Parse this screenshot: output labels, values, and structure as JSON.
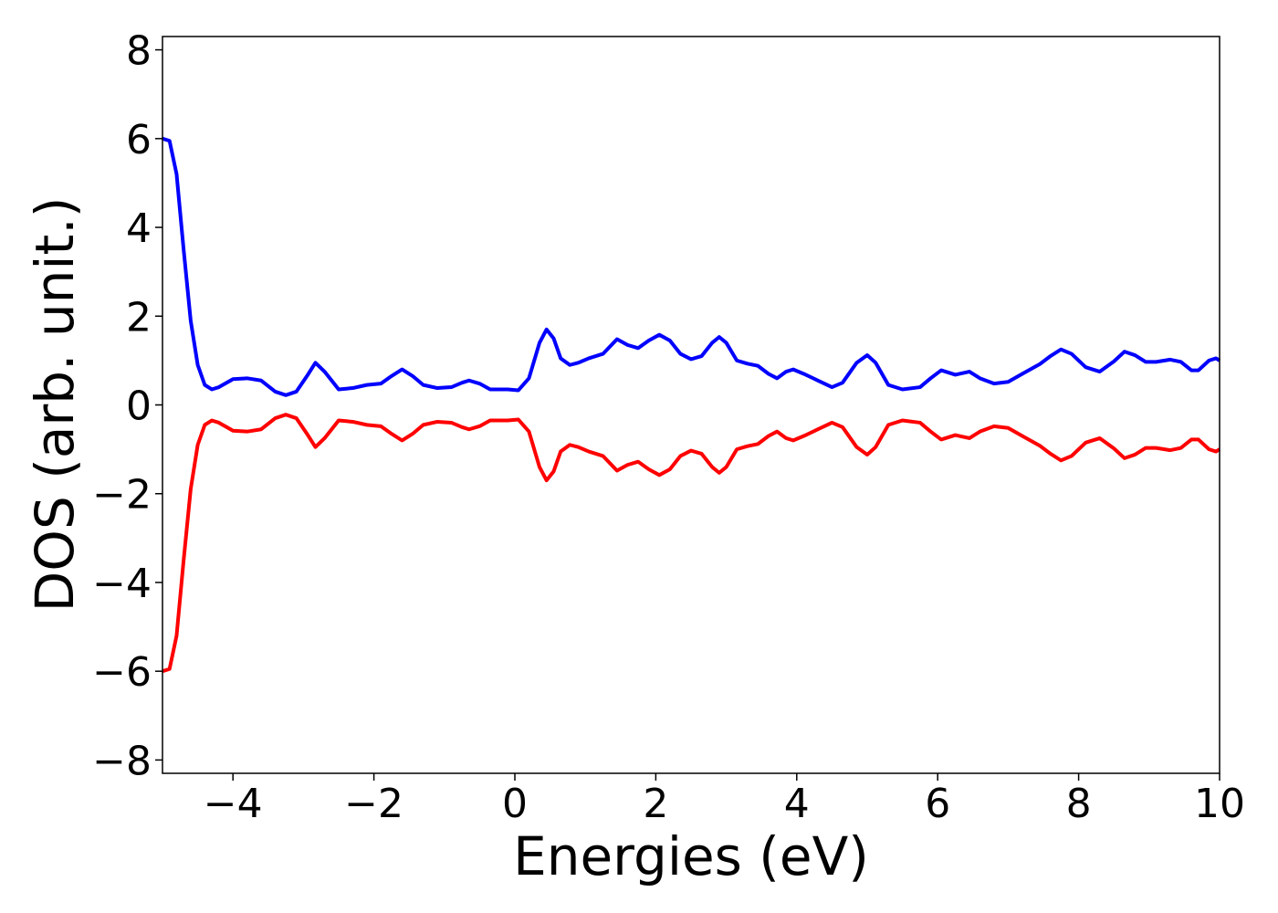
{
  "chart_data": {
    "type": "line",
    "xlabel": "Energies (eV)",
    "ylabel": "DOS (arb. unit.)",
    "x": [
      -5,
      -4.9,
      -4.8,
      -4.7,
      -4.6,
      -4.5,
      -4.4,
      -4.3,
      -4.2,
      -4.0,
      -3.8,
      -3.6,
      -3.4,
      -3.25,
      -3.1,
      -2.95,
      -2.83,
      -2.7,
      -2.5,
      -2.3,
      -2.1,
      -1.9,
      -1.75,
      -1.6,
      -1.45,
      -1.3,
      -1.1,
      -0.9,
      -0.75,
      -0.65,
      -0.5,
      -0.35,
      -0.1,
      0.05,
      0.2,
      0.35,
      0.45,
      0.55,
      0.65,
      0.78,
      0.9,
      1.05,
      1.25,
      1.45,
      1.6,
      1.75,
      1.9,
      2.05,
      2.2,
      2.35,
      2.5,
      2.65,
      2.8,
      2.9,
      3.0,
      3.15,
      3.3,
      3.45,
      3.6,
      3.72,
      3.85,
      3.95,
      4.1,
      4.3,
      4.5,
      4.65,
      4.85,
      5.0,
      5.12,
      5.3,
      5.5,
      5.75,
      5.9,
      6.05,
      6.25,
      6.45,
      6.6,
      6.8,
      7.0,
      7.2,
      7.45,
      7.6,
      7.75,
      7.9,
      8.1,
      8.3,
      8.5,
      8.65,
      8.8,
      8.95,
      9.1,
      9.3,
      9.45,
      9.6,
      9.7,
      9.85,
      9.95,
      10
    ],
    "series": [
      {
        "color": "#0000ff",
        "values": [
          6.0,
          5.95,
          5.2,
          3.5,
          1.9,
          0.9,
          0.45,
          0.35,
          0.4,
          0.58,
          0.6,
          0.55,
          0.3,
          0.22,
          0.3,
          0.65,
          0.95,
          0.75,
          0.35,
          0.38,
          0.45,
          0.48,
          0.65,
          0.8,
          0.65,
          0.45,
          0.38,
          0.4,
          0.5,
          0.55,
          0.48,
          0.35,
          0.35,
          0.33,
          0.6,
          1.4,
          1.7,
          1.5,
          1.05,
          0.9,
          0.95,
          1.05,
          1.15,
          1.48,
          1.35,
          1.28,
          1.45,
          1.58,
          1.45,
          1.15,
          1.03,
          1.1,
          1.4,
          1.53,
          1.4,
          1.0,
          0.93,
          0.88,
          0.7,
          0.6,
          0.75,
          0.8,
          0.7,
          0.55,
          0.4,
          0.5,
          0.95,
          1.12,
          0.95,
          0.45,
          0.35,
          0.4,
          0.6,
          0.78,
          0.68,
          0.75,
          0.6,
          0.48,
          0.52,
          0.7,
          0.92,
          1.1,
          1.25,
          1.15,
          0.85,
          0.75,
          0.98,
          1.2,
          1.12,
          0.97,
          0.97,
          1.02,
          0.97,
          0.78,
          0.78,
          1.0,
          1.05,
          1.0
        ]
      },
      {
        "color": "#ff0000",
        "values": [
          -6.0,
          -5.95,
          -5.2,
          -3.5,
          -1.9,
          -0.9,
          -0.45,
          -0.35,
          -0.4,
          -0.58,
          -0.6,
          -0.55,
          -0.3,
          -0.22,
          -0.3,
          -0.65,
          -0.95,
          -0.75,
          -0.35,
          -0.38,
          -0.45,
          -0.48,
          -0.65,
          -0.8,
          -0.65,
          -0.45,
          -0.38,
          -0.4,
          -0.5,
          -0.55,
          -0.48,
          -0.35,
          -0.35,
          -0.33,
          -0.6,
          -1.4,
          -1.7,
          -1.5,
          -1.05,
          -0.9,
          -0.95,
          -1.05,
          -1.15,
          -1.48,
          -1.35,
          -1.28,
          -1.45,
          -1.58,
          -1.45,
          -1.15,
          -1.03,
          -1.1,
          -1.4,
          -1.53,
          -1.4,
          -1.0,
          -0.93,
          -0.88,
          -0.7,
          -0.6,
          -0.75,
          -0.8,
          -0.7,
          -0.55,
          -0.4,
          -0.5,
          -0.95,
          -1.12,
          -0.95,
          -0.45,
          -0.35,
          -0.4,
          -0.6,
          -0.78,
          -0.68,
          -0.75,
          -0.6,
          -0.48,
          -0.52,
          -0.7,
          -0.92,
          -1.1,
          -1.25,
          -1.15,
          -0.85,
          -0.75,
          -0.98,
          -1.2,
          -1.12,
          -0.97,
          -0.97,
          -1.02,
          -0.97,
          -0.78,
          -0.78,
          -1.0,
          -1.05,
          -1.0
        ]
      }
    ],
    "xlim": [
      -5,
      10
    ],
    "xticks": [
      {
        "value": -4,
        "label": "−4"
      },
      {
        "value": -2,
        "label": "−2"
      },
      0,
      2,
      4,
      6,
      8,
      10
    ],
    "ylim": [
      -8.3,
      8.3
    ],
    "yticks": [
      {
        "value": -8,
        "label": "−8"
      },
      {
        "value": -6,
        "label": "−6"
      },
      {
        "value": -4,
        "label": "−4"
      },
      {
        "value": -2,
        "label": "−2"
      },
      0,
      2,
      4,
      6,
      8
    ],
    "grid": false
  }
}
